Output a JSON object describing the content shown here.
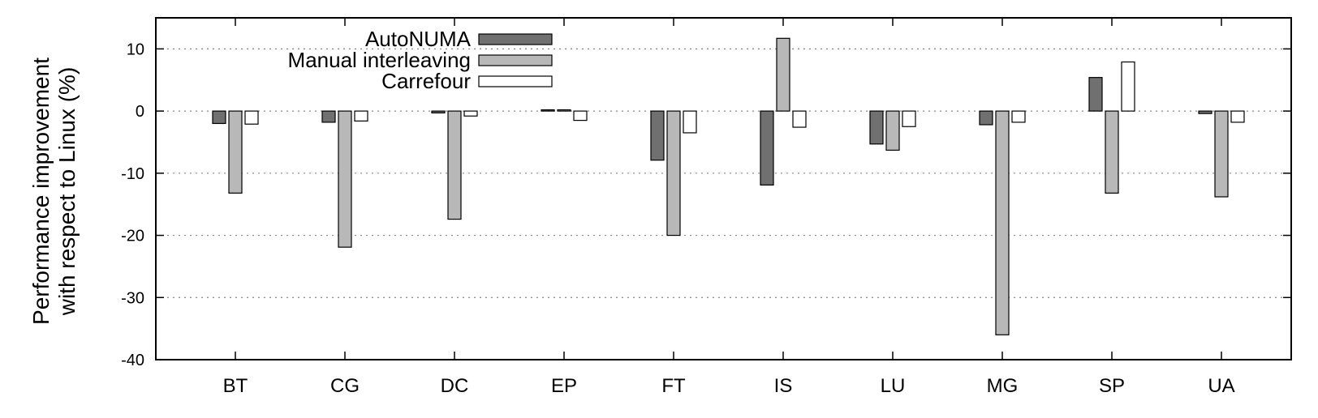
{
  "chart_data": {
    "type": "bar",
    "categories": [
      "BT",
      "CG",
      "DC",
      "EP",
      "FT",
      "IS",
      "LU",
      "MG",
      "SP",
      "UA"
    ],
    "series": [
      {
        "name": "AutoNUMA",
        "color": "#707070",
        "values": [
          -2.0,
          -1.8,
          -0.3,
          0.2,
          -7.9,
          -11.9,
          -5.3,
          -2.2,
          5.4,
          -0.4
        ]
      },
      {
        "name": "Manual interleaving",
        "color": "#b8b8b8",
        "values": [
          -13.2,
          -21.9,
          -17.4,
          0.2,
          -20.0,
          11.7,
          -6.3,
          -36.0,
          -13.2,
          -13.8
        ]
      },
      {
        "name": "Carrefour",
        "color": "#ffffff",
        "values": [
          -2.1,
          -1.6,
          -0.8,
          -1.5,
          -3.5,
          -2.6,
          -2.5,
          -1.8,
          7.9,
          -1.8
        ]
      }
    ],
    "ylabel_line1": "Performance improvement",
    "ylabel_line2": "with respect to Linux (%)",
    "xlabel": "",
    "ylim": [
      -40,
      15
    ],
    "yticks": [
      10,
      0,
      -10,
      -20,
      -30,
      -40
    ],
    "grid": true,
    "legend_position": "top-left"
  }
}
